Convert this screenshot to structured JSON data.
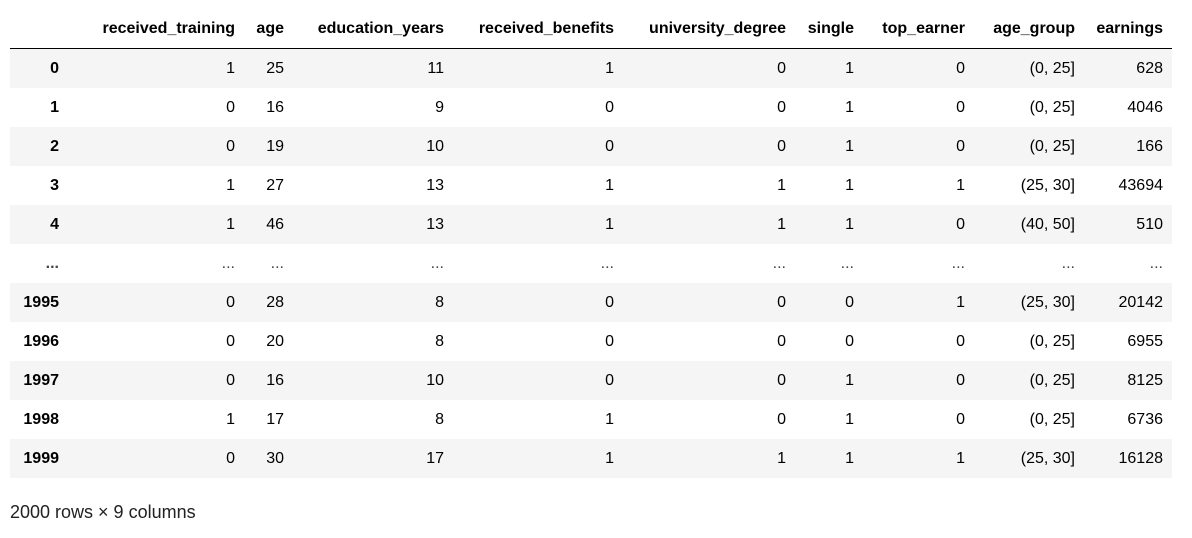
{
  "columns": [
    "",
    "received_training",
    "age",
    "education_years",
    "received_benefits",
    "university_degree",
    "single",
    "top_earner",
    "age_group",
    "earnings"
  ],
  "rows": [
    [
      "0",
      "1",
      "25",
      "11",
      "1",
      "0",
      "1",
      "0",
      "(0, 25]",
      "628"
    ],
    [
      "1",
      "0",
      "16",
      "9",
      "0",
      "0",
      "1",
      "0",
      "(0, 25]",
      "4046"
    ],
    [
      "2",
      "0",
      "19",
      "10",
      "0",
      "0",
      "1",
      "0",
      "(0, 25]",
      "166"
    ],
    [
      "3",
      "1",
      "27",
      "13",
      "1",
      "1",
      "1",
      "1",
      "(25, 30]",
      "43694"
    ],
    [
      "4",
      "1",
      "46",
      "13",
      "1",
      "1",
      "1",
      "0",
      "(40, 50]",
      "510"
    ],
    [
      "...",
      "...",
      "...",
      "...",
      "...",
      "...",
      "...",
      "...",
      "...",
      "..."
    ],
    [
      "1995",
      "0",
      "28",
      "8",
      "0",
      "0",
      "0",
      "1",
      "(25, 30]",
      "20142"
    ],
    [
      "1996",
      "0",
      "20",
      "8",
      "0",
      "0",
      "0",
      "0",
      "(0, 25]",
      "6955"
    ],
    [
      "1997",
      "0",
      "16",
      "10",
      "0",
      "0",
      "1",
      "0",
      "(0, 25]",
      "8125"
    ],
    [
      "1998",
      "1",
      "17",
      "8",
      "1",
      "0",
      "1",
      "0",
      "(0, 25]",
      "6736"
    ],
    [
      "1999",
      "0",
      "30",
      "17",
      "1",
      "1",
      "1",
      "1",
      "(25, 30]",
      "16128"
    ]
  ],
  "shape_text": "2000 rows × 9 columns"
}
